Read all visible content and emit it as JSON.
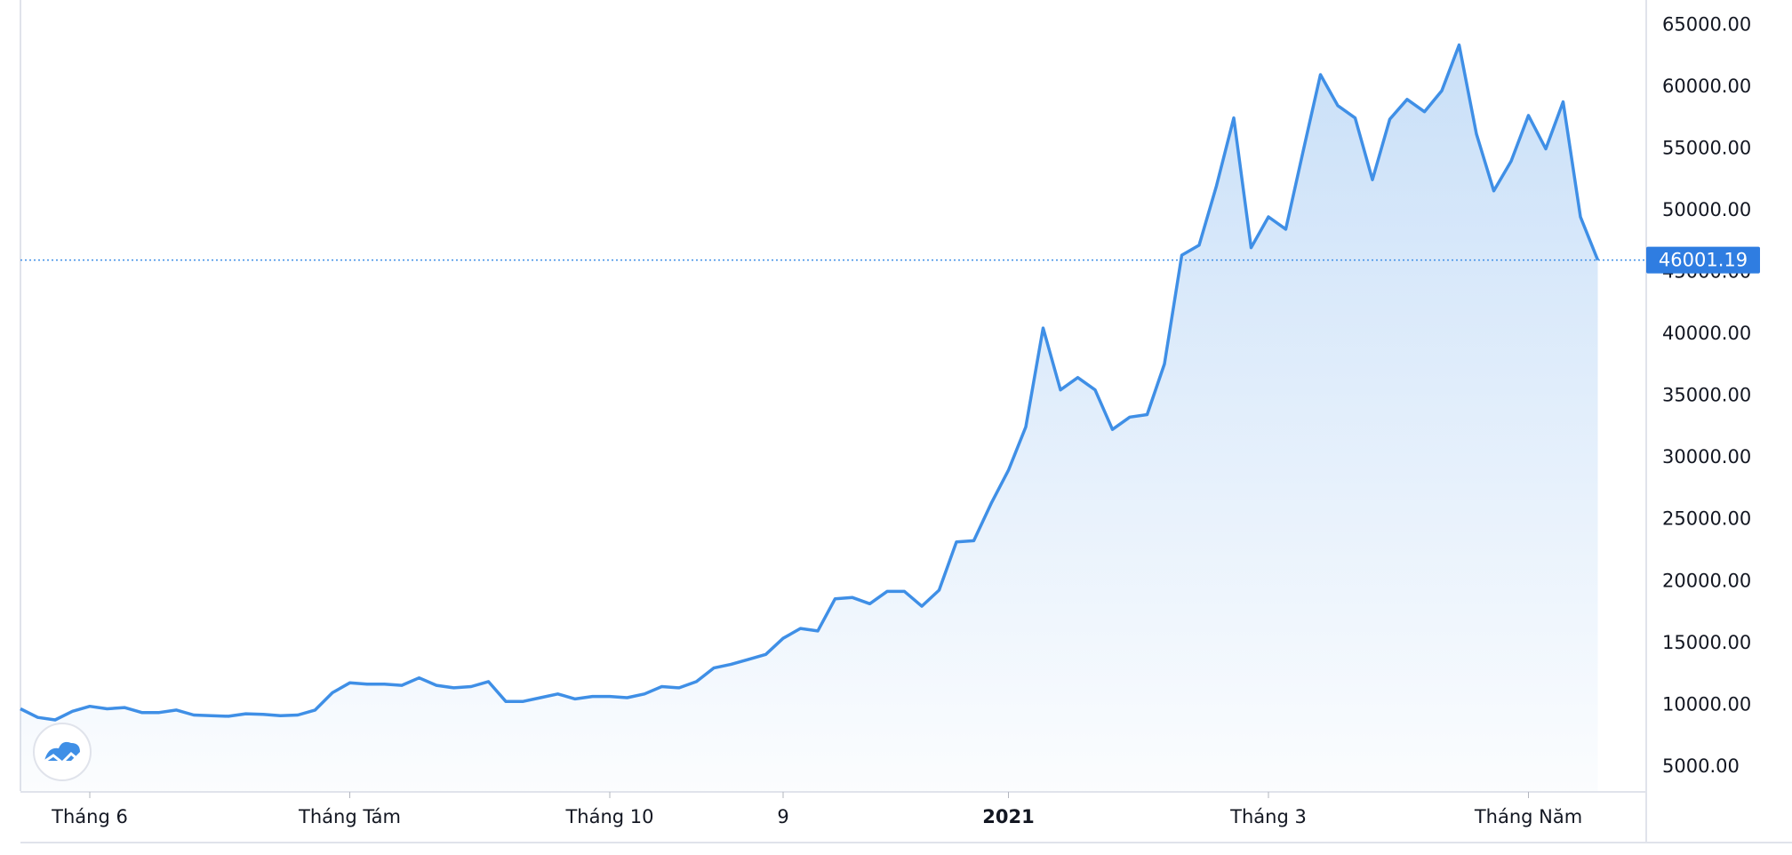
{
  "chart_data": {
    "type": "line",
    "categories": [
      null,
      null,
      null,
      null,
      "Tháng 6",
      null,
      null,
      null,
      null,
      null,
      null,
      null,
      null,
      null,
      null,
      null,
      null,
      null,
      null,
      "Tháng Tám",
      null,
      null,
      null,
      null,
      null,
      null,
      null,
      null,
      null,
      null,
      null,
      null,
      null,
      null,
      "Tháng 10",
      null,
      null,
      null,
      null,
      null,
      null,
      null,
      null,
      null,
      "9",
      null,
      null,
      null,
      null,
      null,
      null,
      null,
      null,
      null,
      null,
      null,
      null,
      "2021",
      null,
      null,
      null,
      null,
      null,
      null,
      null,
      null,
      null,
      null,
      null,
      null,
      null,
      null,
      "Tháng 3",
      null,
      null,
      null,
      null,
      null,
      null,
      null,
      null,
      null,
      null,
      null,
      null,
      null,
      null,
      "Tháng Năm",
      null,
      null,
      null,
      null
    ],
    "values": [
      9700,
      9000,
      8800,
      9500,
      9900,
      9700,
      9800,
      9400,
      9400,
      9600,
      9200,
      9150,
      9100,
      9300,
      9250,
      9150,
      9200,
      9600,
      11000,
      11800,
      11700,
      11700,
      11600,
      12200,
      11600,
      11400,
      11500,
      11900,
      10300,
      10300,
      10600,
      10900,
      10500,
      10700,
      10700,
      10600,
      10900,
      11500,
      11400,
      11900,
      13000,
      13300,
      13700,
      14100,
      15400,
      16200,
      16000,
      18600,
      18700,
      18200,
      19200,
      19200,
      18000,
      19300,
      23200,
      23300,
      26300,
      29000,
      32500,
      40500,
      35500,
      36500,
      35500,
      32300,
      33300,
      33500,
      37600,
      46400,
      47200,
      52000,
      57500,
      47000,
      49500,
      48500,
      54800,
      61000,
      58500,
      57500,
      52500,
      57400,
      59000,
      58000,
      59700,
      63400,
      56200,
      51600,
      54000,
      57700,
      55000,
      58800,
      49500,
      46001.19
    ],
    "color": "#3f8fe6",
    "ylim": [
      3050,
      67040
    ],
    "yticks": [
      {
        "value": 5000,
        "label": "5000.00"
      },
      {
        "value": 10000,
        "label": "10000.00"
      },
      {
        "value": 15000,
        "label": "15000.00"
      },
      {
        "value": 20000,
        "label": "20000.00"
      },
      {
        "value": 25000,
        "label": "25000.00"
      },
      {
        "value": 30000,
        "label": "30000.00"
      },
      {
        "value": 35000,
        "label": "35000.00"
      },
      {
        "value": 40000,
        "label": "40000.00"
      },
      {
        "value": 45000,
        "label": "45000.00"
      },
      {
        "value": 50000,
        "label": "50000.00"
      },
      {
        "value": 55000,
        "label": "55000.00"
      },
      {
        "value": 60000,
        "label": "60000.00"
      },
      {
        "value": 65000,
        "label": "65000.00"
      }
    ],
    "grid": false
  }
}
